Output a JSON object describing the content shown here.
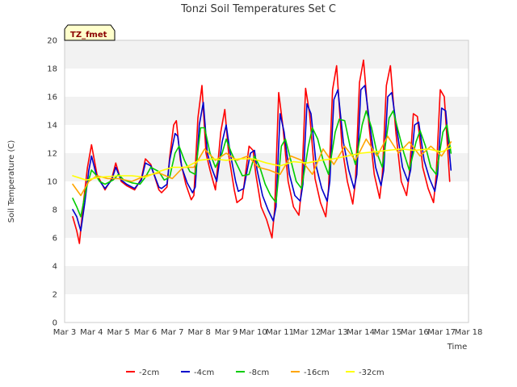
{
  "chart_data": {
    "type": "line",
    "title": "Tonzi Soil Temperatures Set C",
    "xlabel": "Time",
    "ylabel": "Soil Temperature (C)",
    "badge": "TZ_fmet",
    "xlim": [
      3,
      18
    ],
    "ylim": [
      0,
      20
    ],
    "grid": "horizontal bands",
    "legend_position": "bottom",
    "x_ticks": [
      3,
      4,
      5,
      6,
      7,
      8,
      9,
      10,
      11,
      12,
      13,
      14,
      15,
      16,
      17,
      18
    ],
    "x_tick_labels": [
      "Mar 3",
      "Mar 4",
      "Mar 5",
      "Mar 6",
      "Mar 7",
      "Mar 8",
      "Mar 9",
      "Mar 10",
      "Mar 11",
      "Mar 12",
      "Mar 13",
      "Mar 14",
      "Mar 15",
      "Mar 16",
      "Mar 17",
      "Mar 18"
    ],
    "y_ticks": [
      0,
      2,
      4,
      6,
      8,
      10,
      12,
      14,
      16,
      18,
      20
    ],
    "series": [
      {
        "name": "-2cm",
        "color": "#ff0000",
        "x": [
          3.3,
          3.45,
          3.55,
          3.7,
          3.85,
          4.0,
          4.2,
          4.5,
          4.75,
          4.9,
          5.1,
          5.3,
          5.6,
          5.85,
          6.0,
          6.2,
          6.5,
          6.6,
          6.8,
          6.9,
          7.05,
          7.15,
          7.3,
          7.5,
          7.7,
          7.8,
          7.95,
          8.1,
          8.25,
          8.4,
          8.6,
          8.8,
          8.95,
          9.1,
          9.3,
          9.4,
          9.6,
          9.85,
          10.0,
          10.1,
          10.3,
          10.5,
          10.7,
          10.8,
          10.95,
          11.1,
          11.3,
          11.5,
          11.7,
          11.8,
          11.95,
          12.1,
          12.3,
          12.5,
          12.7,
          12.8,
          12.95,
          13.1,
          13.3,
          13.5,
          13.7,
          13.8,
          13.95,
          14.1,
          14.3,
          14.5,
          14.7,
          14.8,
          14.95,
          15.1,
          15.3,
          15.5,
          15.7,
          15.8,
          15.95,
          16.1,
          16.3,
          16.5,
          16.7,
          16.8,
          16.95,
          17.1,
          17.3
        ],
        "y": [
          7.5,
          6.5,
          5.6,
          8.5,
          11.0,
          12.6,
          10.5,
          9.4,
          10.2,
          11.3,
          10.0,
          9.7,
          9.4,
          10.2,
          11.6,
          11.2,
          9.4,
          9.2,
          9.6,
          11.7,
          14.0,
          14.3,
          11.5,
          9.8,
          8.7,
          9.0,
          14.5,
          16.8,
          12.0,
          10.8,
          9.4,
          13.5,
          15.1,
          11.8,
          9.4,
          8.5,
          8.8,
          12.5,
          12.2,
          10.5,
          8.2,
          7.3,
          6.0,
          8.0,
          16.3,
          14.0,
          10.0,
          8.2,
          7.6,
          9.5,
          16.6,
          14.8,
          10.2,
          8.5,
          7.5,
          9.5,
          16.5,
          18.2,
          12.5,
          10.0,
          8.4,
          10.0,
          17.0,
          18.6,
          14.0,
          10.5,
          8.8,
          10.5,
          16.8,
          18.2,
          13.5,
          10.0,
          9.0,
          10.5,
          14.8,
          14.6,
          11.0,
          9.5,
          8.5,
          10.5,
          16.5,
          16.0,
          10.0
        ]
      },
      {
        "name": "-4cm",
        "color": "#0000cc",
        "x": [
          3.3,
          3.45,
          3.6,
          3.75,
          3.9,
          4.0,
          4.2,
          4.5,
          4.75,
          4.9,
          5.1,
          5.3,
          5.6,
          5.85,
          6.0,
          6.2,
          6.5,
          6.6,
          6.8,
          6.9,
          7.1,
          7.2,
          7.35,
          7.55,
          7.75,
          7.85,
          8.0,
          8.15,
          8.3,
          8.45,
          8.65,
          8.85,
          9.0,
          9.15,
          9.35,
          9.45,
          9.65,
          9.9,
          10.05,
          10.15,
          10.35,
          10.55,
          10.75,
          10.85,
          11.0,
          11.15,
          11.35,
          11.55,
          11.75,
          11.85,
          12.0,
          12.15,
          12.35,
          12.55,
          12.75,
          12.85,
          13.0,
          13.15,
          13.35,
          13.55,
          13.75,
          13.85,
          14.0,
          14.15,
          14.35,
          14.55,
          14.75,
          14.85,
          15.0,
          15.15,
          15.35,
          15.55,
          15.75,
          15.85,
          16.0,
          16.15,
          16.35,
          16.55,
          16.75,
          16.85,
          17.0,
          17.15,
          17.35
        ],
        "y": [
          8.0,
          7.5,
          6.5,
          8.5,
          10.8,
          11.8,
          10.3,
          9.5,
          10.1,
          11.0,
          10.1,
          9.8,
          9.5,
          10.1,
          11.3,
          11.1,
          9.6,
          9.5,
          9.8,
          11.5,
          13.4,
          13.2,
          11.0,
          9.9,
          9.2,
          9.6,
          14.0,
          15.6,
          12.0,
          11.0,
          10.0,
          12.8,
          14.0,
          12.0,
          10.0,
          9.3,
          9.5,
          12.0,
          12.2,
          10.8,
          9.0,
          8.0,
          7.2,
          8.2,
          14.8,
          13.5,
          10.5,
          9.0,
          8.6,
          9.8,
          15.5,
          14.8,
          11.0,
          9.5,
          8.6,
          10.0,
          15.8,
          16.5,
          12.8,
          10.8,
          9.5,
          10.5,
          16.5,
          16.8,
          13.8,
          11.0,
          9.7,
          10.8,
          16.0,
          16.3,
          13.5,
          11.0,
          10.0,
          10.8,
          14.0,
          14.2,
          11.5,
          10.2,
          9.3,
          10.5,
          15.2,
          15.0,
          10.8
        ]
      },
      {
        "name": "-8cm",
        "color": "#00cc00",
        "x": [
          3.3,
          3.45,
          3.6,
          3.8,
          4.0,
          4.15,
          4.3,
          4.5,
          4.8,
          5.0,
          5.2,
          5.5,
          5.8,
          6.0,
          6.2,
          6.5,
          6.7,
          6.9,
          7.1,
          7.25,
          7.45,
          7.65,
          7.85,
          8.05,
          8.2,
          8.4,
          8.6,
          8.85,
          9.0,
          9.2,
          9.4,
          9.6,
          9.85,
          10.05,
          10.25,
          10.45,
          10.65,
          10.85,
          11.05,
          11.2,
          11.4,
          11.6,
          11.8,
          12.05,
          12.2,
          12.4,
          12.6,
          12.8,
          13.05,
          13.2,
          13.4,
          13.6,
          13.8,
          14.05,
          14.2,
          14.4,
          14.6,
          14.8,
          15.05,
          15.2,
          15.4,
          15.6,
          15.8,
          16.05,
          16.2,
          16.4,
          16.6,
          16.8,
          17.05,
          17.2,
          17.35
        ],
        "y": [
          8.8,
          8.2,
          7.5,
          9.5,
          10.8,
          10.5,
          10.0,
          9.8,
          10.1,
          10.5,
          10.1,
          9.9,
          9.8,
          10.3,
          11.0,
          10.7,
          10.1,
          10.3,
          12.0,
          12.5,
          11.5,
          10.7,
          10.5,
          13.8,
          13.8,
          12.0,
          11.0,
          12.0,
          13.0,
          12.0,
          11.2,
          10.4,
          10.5,
          11.8,
          11.0,
          9.8,
          9.0,
          8.5,
          12.5,
          13.0,
          11.5,
          10.0,
          9.5,
          12.5,
          13.8,
          13.0,
          11.5,
          10.5,
          13.5,
          14.4,
          14.3,
          12.5,
          11.2,
          14.0,
          15.0,
          13.8,
          12.0,
          11.0,
          14.5,
          15.0,
          13.5,
          12.0,
          10.8,
          12.8,
          13.6,
          12.5,
          11.0,
          10.5,
          13.5,
          14.0,
          12.0
        ]
      },
      {
        "name": "-16cm",
        "color": "#ffa500",
        "x": [
          3.3,
          3.6,
          3.9,
          4.2,
          4.6,
          5.0,
          5.5,
          6.0,
          6.5,
          7.0,
          7.4,
          7.8,
          8.2,
          8.6,
          9.0,
          9.4,
          9.8,
          10.2,
          10.6,
          11.0,
          11.4,
          11.8,
          12.2,
          12.6,
          13.0,
          13.4,
          13.8,
          14.2,
          14.6,
          15.0,
          15.4,
          15.8,
          16.2,
          16.6,
          17.0,
          17.35
        ],
        "y": [
          9.8,
          9.0,
          10.0,
          10.4,
          10.2,
          10.2,
          10.0,
          10.4,
          10.6,
          10.2,
          11.0,
          11.0,
          12.3,
          11.5,
          12.0,
          11.5,
          11.8,
          11.0,
          10.8,
          10.5,
          11.8,
          11.5,
          10.5,
          12.3,
          11.2,
          12.5,
          11.5,
          13.0,
          11.8,
          13.2,
          12.0,
          12.8,
          11.8,
          12.5,
          11.8,
          12.8
        ]
      },
      {
        "name": "-32cm",
        "color": "#ffff00",
        "x": [
          3.3,
          3.8,
          4.3,
          5.0,
          5.5,
          6.0,
          6.5,
          7.0,
          7.5,
          8.0,
          8.5,
          9.0,
          9.5,
          10.0,
          10.5,
          11.0,
          11.5,
          12.0,
          12.5,
          13.0,
          13.5,
          14.0,
          14.5,
          15.0,
          15.5,
          16.0,
          16.5,
          17.0,
          17.35
        ],
        "y": [
          10.4,
          10.1,
          10.3,
          10.4,
          10.4,
          10.3,
          10.7,
          11.0,
          11.0,
          11.5,
          11.6,
          11.5,
          11.6,
          11.6,
          11.3,
          11.1,
          11.4,
          11.3,
          11.5,
          11.6,
          11.8,
          12.0,
          12.1,
          12.2,
          12.3,
          12.2,
          12.3,
          12.1,
          12.4
        ]
      }
    ]
  }
}
